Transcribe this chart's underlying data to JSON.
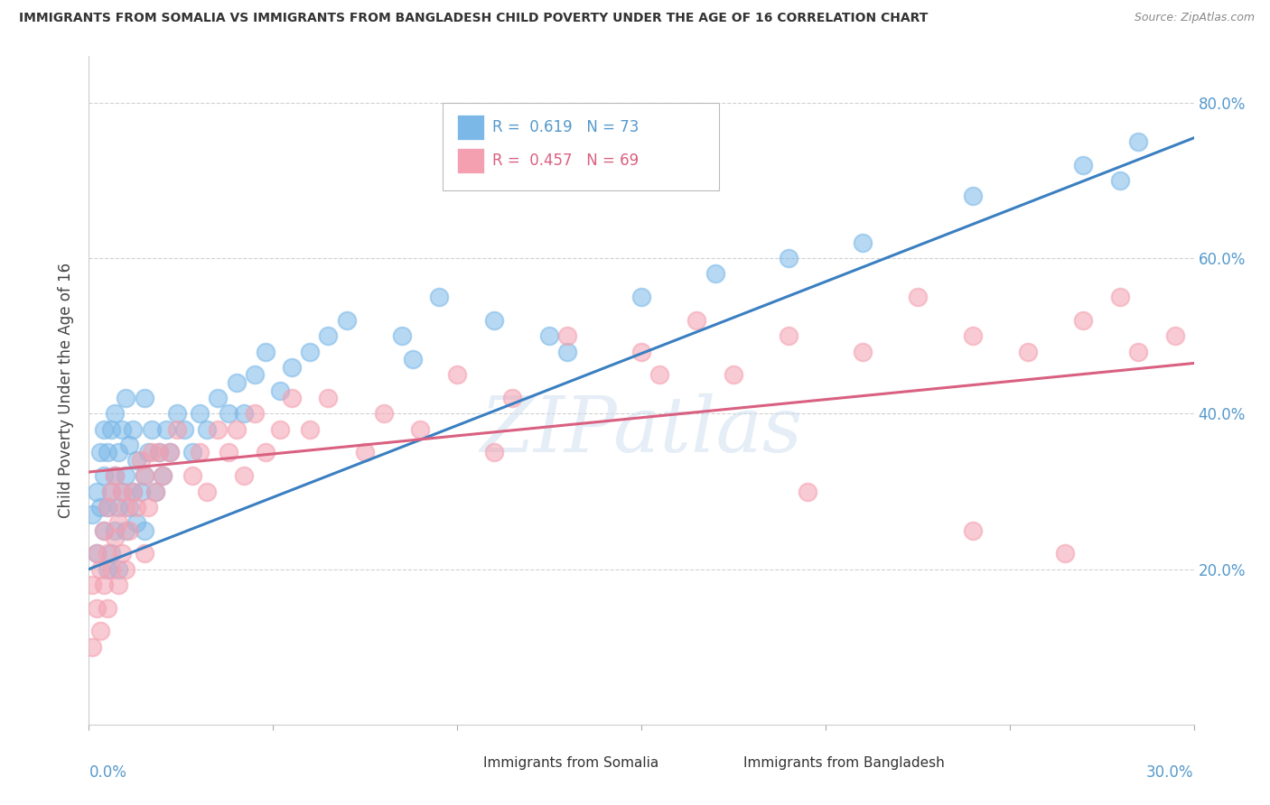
{
  "title": "IMMIGRANTS FROM SOMALIA VS IMMIGRANTS FROM BANGLADESH CHILD POVERTY UNDER THE AGE OF 16 CORRELATION CHART",
  "source": "Source: ZipAtlas.com",
  "ylabel": "Child Poverty Under the Age of 16",
  "somalia_R": 0.619,
  "somalia_N": 73,
  "bangladesh_R": 0.457,
  "bangladesh_N": 69,
  "somalia_color": "#7bb8e8",
  "bangladesh_color": "#f4a0b0",
  "somalia_line_color": "#3a7fc1",
  "bangladesh_line_color": "#d96080",
  "background_color": "#ffffff",
  "xlim": [
    0.0,
    0.3
  ],
  "ylim": [
    0.0,
    0.86
  ],
  "grid_color": "#cccccc",
  "tick_color": "#5599cc",
  "title_color": "#333333",
  "source_color": "#888888"
}
